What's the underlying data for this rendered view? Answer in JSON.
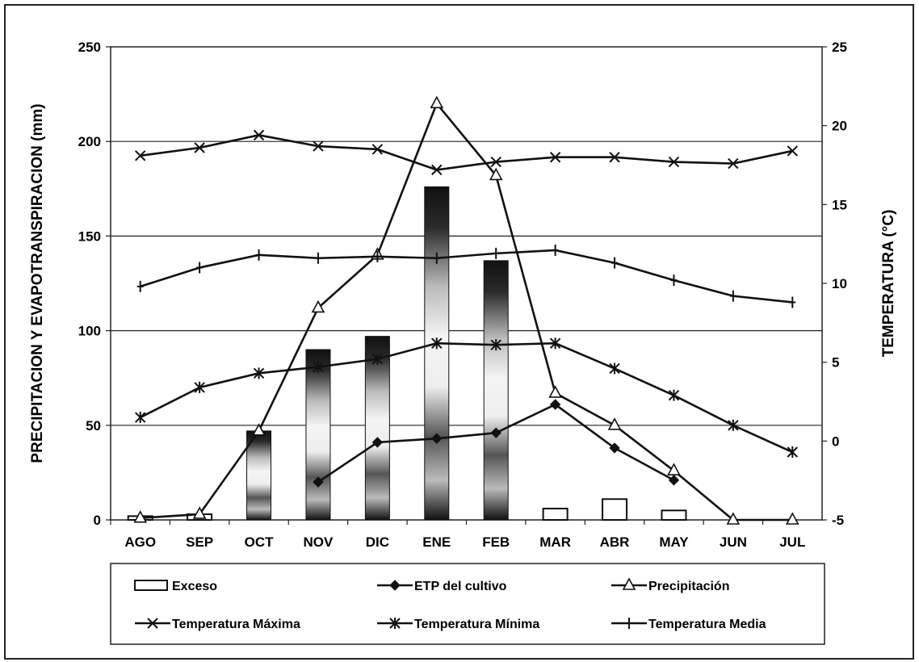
{
  "chart_data": {
    "type": "bar",
    "title": "",
    "categories": [
      "AGO",
      "SEP",
      "OCT",
      "NOV",
      "DIC",
      "ENE",
      "FEB",
      "MAR",
      "ABR",
      "MAY",
      "JUN",
      "JUL"
    ],
    "ylabel": "PRECIPITACION Y EVAPOTRANSPIRACION (mm)",
    "y2label": "TEMPERATURA (°C)",
    "ylim": [
      0,
      250
    ],
    "y2lim": [
      -5,
      25
    ],
    "yticks": [
      0,
      50,
      100,
      150,
      200,
      250
    ],
    "y2ticks": [
      -5,
      0,
      5,
      10,
      15,
      20,
      25
    ],
    "grid": true,
    "legend_position": "bottom",
    "series": [
      {
        "name": "Exceso",
        "kind": "bar",
        "axis": "left",
        "values": [
          2,
          3,
          47,
          90,
          97,
          176,
          137,
          6,
          11,
          5,
          0,
          0
        ]
      },
      {
        "name": "ETP del cultivo",
        "kind": "line",
        "marker": "diamond",
        "axis": "left",
        "values": [
          null,
          null,
          null,
          20,
          41,
          43,
          46,
          61,
          38,
          21,
          null,
          null
        ]
      },
      {
        "name": "Precipitación",
        "kind": "line",
        "marker": "triangle",
        "axis": "left",
        "values": [
          1,
          3,
          47,
          112,
          140,
          220,
          182,
          67,
          50,
          26,
          0,
          0
        ]
      },
      {
        "name": "Temperatura Máxima",
        "kind": "line",
        "marker": "x",
        "axis": "right",
        "values": [
          18.1,
          18.6,
          19.4,
          18.7,
          18.5,
          17.2,
          17.7,
          18.0,
          18.0,
          17.7,
          17.6,
          18.4
        ]
      },
      {
        "name": "Temperatura Mínima",
        "kind": "line",
        "marker": "star",
        "axis": "right",
        "values": [
          1.5,
          3.4,
          4.3,
          4.7,
          5.2,
          6.2,
          6.1,
          6.2,
          4.6,
          2.9,
          1.0,
          -0.7
        ]
      },
      {
        "name": "Temperatura Media",
        "kind": "line",
        "marker": "plus",
        "axis": "right",
        "values": [
          9.8,
          11.0,
          11.8,
          11.6,
          11.7,
          11.6,
          11.9,
          12.1,
          11.3,
          10.2,
          9.2,
          8.8
        ]
      }
    ]
  }
}
